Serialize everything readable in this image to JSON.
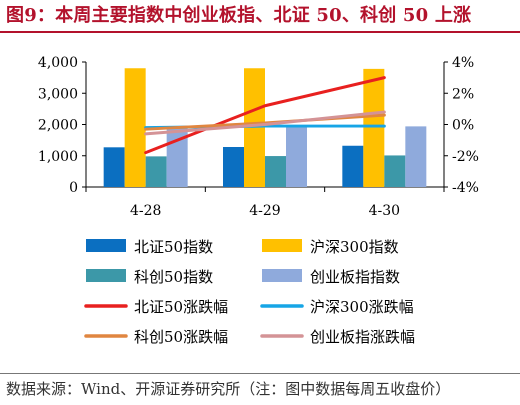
{
  "title": "图9：本周主要指数中创业板指、北证 50、科创 50 上涨",
  "source": "数据来源：Wind、开源证券研究所（注：图中数据每周五收盘价）",
  "chart_data": {
    "type": "bar+line",
    "categories": [
      "4-28",
      "4-29",
      "4-30"
    ],
    "y_left": {
      "ticks": [
        "0",
        "1,000",
        "2,000",
        "3,000",
        "4,000"
      ],
      "lim": [
        0,
        4000
      ]
    },
    "y_right": {
      "ticks": [
        "-4%",
        "-2%",
        "0%",
        "2%",
        "4%"
      ],
      "lim": [
        -4,
        4
      ]
    },
    "grid": false,
    "legend_position": "bottom",
    "bars": [
      {
        "name": "北证50指数",
        "color": "#0b6fc1",
        "values": [
          1270,
          1280,
          1320
        ]
      },
      {
        "name": "沪深300指数",
        "color": "#ffc000",
        "values": [
          3800,
          3800,
          3780
        ]
      },
      {
        "name": "科创50指数",
        "color": "#3c98a8",
        "values": [
          980,
          990,
          1010
        ]
      },
      {
        "name": "创业板指指数",
        "color": "#8faadc",
        "values": [
          1900,
          1920,
          1940
        ]
      }
    ],
    "lines": [
      {
        "name": "北证50涨跌幅",
        "color": "#e8201f",
        "values": [
          -1.8,
          1.2,
          3.0
        ]
      },
      {
        "name": "沪深300涨跌幅",
        "color": "#16a5e6",
        "values": [
          -0.2,
          -0.1,
          -0.1
        ]
      },
      {
        "name": "科创50涨跌幅",
        "color": "#e08640",
        "values": [
          -0.3,
          0.1,
          0.6
        ]
      },
      {
        "name": "创业板指涨跌幅",
        "color": "#d49396",
        "values": [
          -0.6,
          0.0,
          0.8
        ]
      }
    ]
  }
}
